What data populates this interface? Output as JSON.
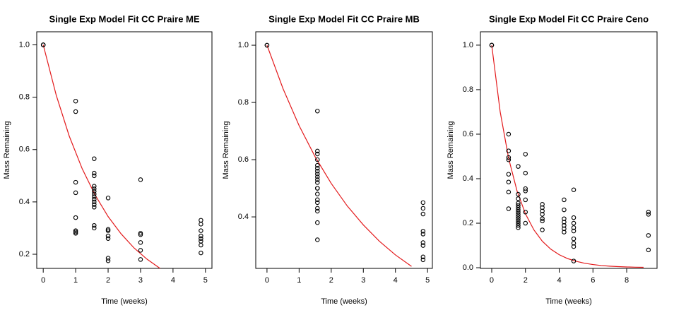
{
  "chart_data": [
    {
      "type": "scatter",
      "title": "Single Exp Model Fit CC Praire ME",
      "x_label": "Time (weeks)",
      "y_label": "Mass Remaining",
      "x": [
        0,
        0,
        0,
        1,
        1,
        1,
        1,
        1,
        1,
        1,
        1,
        1.57,
        1.57,
        1.57,
        1.57,
        1.57,
        1.57,
        1.57,
        1.57,
        1.57,
        1.57,
        1.57,
        1.57,
        1.57,
        1.57,
        2,
        2,
        2,
        2,
        2,
        2,
        2,
        3,
        3,
        3,
        3,
        3,
        3,
        4.86,
        4.86,
        4.86,
        4.86,
        4.86,
        4.86,
        4.86,
        4.86
      ],
      "values": [
        1,
        1,
        1,
        0.785,
        0.745,
        0.475,
        0.435,
        0.34,
        0.29,
        0.285,
        0.28,
        0.565,
        0.51,
        0.5,
        0.46,
        0.45,
        0.44,
        0.43,
        0.42,
        0.41,
        0.4,
        0.39,
        0.38,
        0.31,
        0.3,
        0.415,
        0.295,
        0.29,
        0.27,
        0.26,
        0.185,
        0.175,
        0.485,
        0.28,
        0.275,
        0.245,
        0.215,
        0.18,
        0.33,
        0.315,
        0.29,
        0.27,
        0.26,
        0.25,
        0.235,
        0.205
      ],
      "point_color": "#000000",
      "fit": {
        "color": "#e31a1c",
        "x": [
          0,
          0.4,
          0.8,
          1.2,
          1.6,
          2.0,
          2.4,
          2.8,
          3.2,
          3.6
        ],
        "values": [
          1,
          0.808,
          0.652,
          0.527,
          0.426,
          0.344,
          0.278,
          0.224,
          0.181,
          0.146
        ]
      },
      "xlim": [
        -0.2,
        5.2
      ],
      "ylim": [
        0.146,
        1.05
      ],
      "xticks": [
        0,
        1,
        2,
        3,
        4,
        5
      ],
      "yticks": [
        0.2,
        0.4,
        0.6,
        0.8,
        {
          "value": 1,
          "label": "1.0"
        }
      ]
    },
    {
      "type": "scatter",
      "title": "Single Exp Model Fit CC Praire MB",
      "x_label": "Time (weeks)",
      "y_label": "Mass Remaining",
      "x": [
        0,
        0,
        1.57,
        1.57,
        1.57,
        1.57,
        1.57,
        1.57,
        1.57,
        1.57,
        1.57,
        1.57,
        1.57,
        1.57,
        1.57,
        1.57,
        1.57,
        1.57,
        1.57,
        1.57,
        1.57,
        1.57,
        4.86,
        4.86,
        4.86,
        4.86,
        4.86,
        4.86,
        4.86,
        4.86,
        4.86
      ],
      "values": [
        1,
        1,
        0.77,
        0.63,
        0.62,
        0.6,
        0.58,
        0.57,
        0.56,
        0.55,
        0.54,
        0.53,
        0.52,
        0.5,
        0.5,
        0.48,
        0.46,
        0.45,
        0.43,
        0.42,
        0.38,
        0.32,
        0.45,
        0.43,
        0.41,
        0.35,
        0.34,
        0.31,
        0.3,
        0.26,
        0.25
      ],
      "point_color": "#000000",
      "fit": {
        "color": "#e31a1c",
        "x": [
          0,
          0.5,
          1,
          1.5,
          2,
          2.5,
          3,
          3.5,
          4,
          4.5
        ],
        "values": [
          1,
          0.848,
          0.719,
          0.61,
          0.517,
          0.438,
          0.372,
          0.315,
          0.267,
          0.227
        ]
      },
      "xlim": [
        -0.35,
        5.15
      ],
      "ylim": [
        0.22,
        1.047
      ],
      "xticks": [
        0,
        1,
        2,
        3,
        4,
        5
      ],
      "yticks": [
        0.4,
        0.6,
        0.8,
        {
          "value": 1,
          "label": "1.0"
        }
      ]
    },
    {
      "type": "scatter",
      "title": "Single Exp Model Fit CC Praire Ceno",
      "x_label": "Time (weeks)",
      "y_label": "Mass Remaining",
      "x": [
        0,
        0,
        1,
        1,
        1,
        1,
        1,
        1,
        1,
        1,
        1.57,
        1.57,
        1.57,
        1.57,
        1.57,
        1.57,
        1.57,
        1.57,
        1.57,
        1.57,
        1.57,
        1.57,
        1.57,
        1.57,
        1.57,
        2,
        2,
        2,
        2,
        2,
        2,
        2,
        3,
        3,
        3,
        3,
        3,
        3,
        3,
        4.29,
        4.29,
        4.29,
        4.29,
        4.29,
        4.29,
        4.29,
        4.86,
        4.86,
        4.86,
        4.86,
        4.86,
        4.86,
        4.86,
        4.86,
        4.86,
        9.29,
        9.29,
        9.29,
        9.29
      ],
      "values": [
        1,
        1,
        0.6,
        0.525,
        0.495,
        0.485,
        0.42,
        0.385,
        0.34,
        0.265,
        0.455,
        0.33,
        0.31,
        0.29,
        0.28,
        0.27,
        0.26,
        0.25,
        0.24,
        0.23,
        0.22,
        0.21,
        0.2,
        0.19,
        0.18,
        0.51,
        0.425,
        0.355,
        0.345,
        0.305,
        0.25,
        0.2,
        0.285,
        0.27,
        0.255,
        0.24,
        0.22,
        0.21,
        0.17,
        0.305,
        0.26,
        0.22,
        0.205,
        0.19,
        0.175,
        0.16,
        0.35,
        0.225,
        0.2,
        0.18,
        0.165,
        0.13,
        0.11,
        0.095,
        0.03,
        0.25,
        0.24,
        0.145,
        0.08
      ],
      "point_color": "#000000",
      "fit": {
        "color": "#e31a1c",
        "x": [
          0,
          0.5,
          1,
          1.5,
          2,
          2.5,
          3,
          3.5,
          4,
          4.5,
          5,
          5.5,
          6,
          6.5,
          7,
          7.5,
          8,
          8.5,
          9
        ],
        "values": [
          1,
          0.701,
          0.492,
          0.345,
          0.242,
          0.17,
          0.119,
          0.0834,
          0.0585,
          0.041,
          0.0288,
          0.0202,
          0.0142,
          0.0099,
          0.007,
          0.0049,
          0.0034,
          0.0024,
          0.0017
        ]
      },
      "xlim": [
        -0.67,
        9.8
      ],
      "ylim": [
        -0.003,
        1.06
      ],
      "xticks": [
        0,
        2,
        4,
        6,
        8
      ],
      "yticks": [
        {
          "value": 0,
          "label": "0.0"
        },
        0.2,
        0.4,
        0.6,
        0.8,
        {
          "value": 1,
          "label": "1.0"
        }
      ]
    }
  ]
}
